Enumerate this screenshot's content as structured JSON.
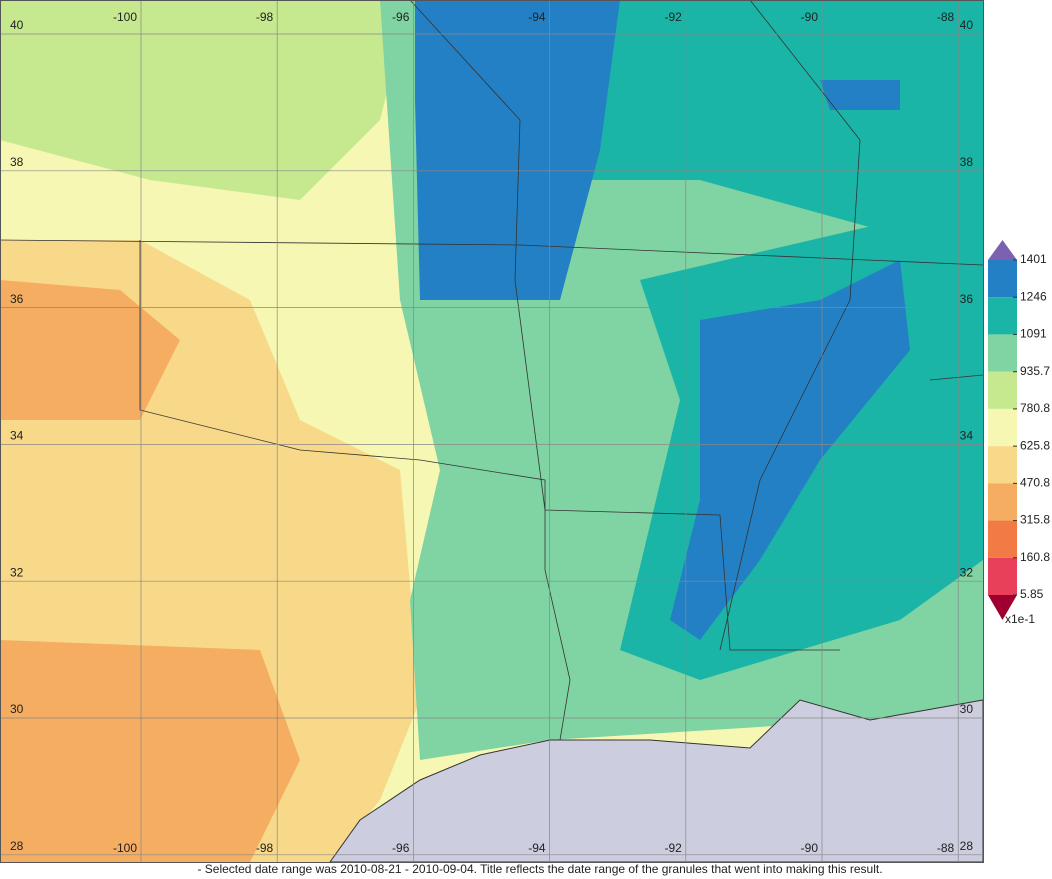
{
  "map": {
    "lon_labels": [
      -100,
      -98,
      -96,
      -94,
      -92,
      -90,
      -88
    ],
    "lat_labels": [
      40,
      38,
      36,
      34,
      32,
      30,
      28
    ]
  },
  "legend": {
    "ticks": [
      1401,
      1246,
      1091,
      935.7,
      780.8,
      625.8,
      470.8,
      315.8,
      160.8,
      5.85
    ],
    "colors": [
      "#2480c4",
      "#1ab5a6",
      "#80d3a2",
      "#c6e98f",
      "#f6f7b2",
      "#f8d98a",
      "#f5ad62",
      "#f27a44",
      "#e8405a"
    ],
    "over_color": "#7a62b0",
    "under_color": "#a00030",
    "unit": "x1e-1"
  },
  "footnote": "- Selected date range was 2010-08-21 - 2010-09-04. Title reflects the date range of the granules that went into making this result."
}
